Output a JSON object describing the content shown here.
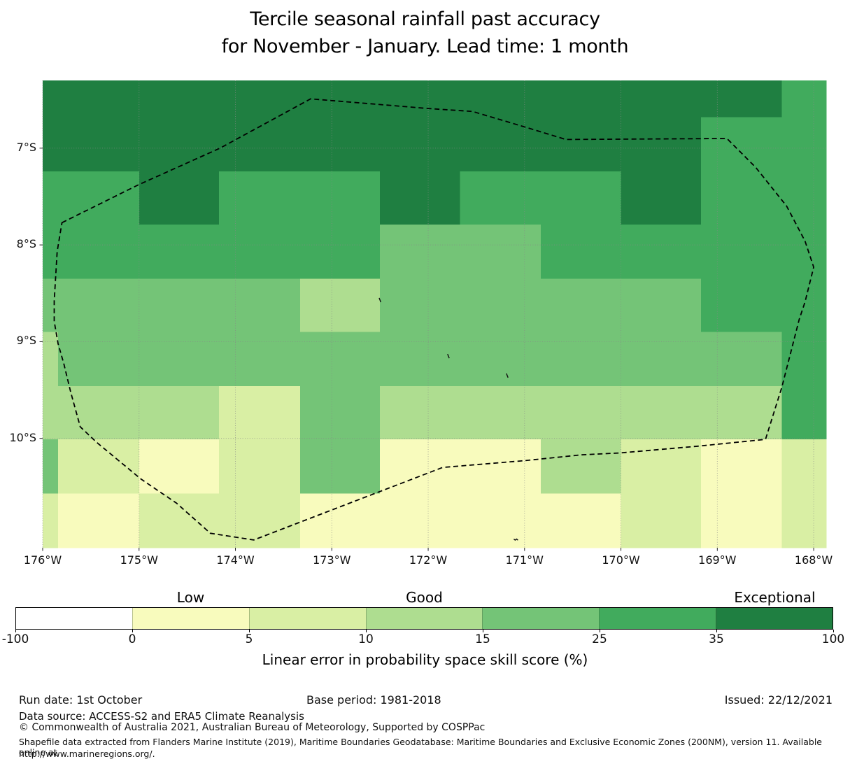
{
  "title": {
    "line1": "Tercile seasonal rainfall past accuracy",
    "line2": "for November - January. Lead time: 1 month"
  },
  "chart_data": {
    "type": "heatmap",
    "title": "Tercile seasonal rainfall past accuracy for November - January. Lead time: 1 month",
    "x_axis": {
      "ticks": [
        "176°W",
        "175°W",
        "174°W",
        "173°W",
        "172°W",
        "171°W",
        "170°W",
        "169°W",
        "168°W"
      ],
      "tick_lons_w": [
        176,
        175,
        174,
        173,
        172,
        171,
        170,
        169,
        168
      ]
    },
    "y_axis": {
      "ticks": [
        "7°S",
        "8°S",
        "9°S",
        "10°S"
      ],
      "tick_lats_s": [
        7,
        8,
        9,
        10
      ]
    },
    "extent": {
      "lon_left_w": 176.0,
      "lon_right_w": 167.87,
      "lat_top_s": 6.3,
      "lat_bottom_s": 11.13
    },
    "grid": {
      "col_bounds_lon_w": [
        176.0,
        175.84,
        175.0,
        174.17,
        173.33,
        172.5,
        171.67,
        170.83,
        170.0,
        169.17,
        168.33,
        167.87
      ],
      "row_bounds_lat_s": [
        6.3,
        6.68,
        7.24,
        7.79,
        8.35,
        8.9,
        9.46,
        10.01,
        10.57,
        11.13
      ],
      "bin_index": [
        [
          6,
          6,
          6,
          6,
          6,
          6,
          6,
          6,
          6,
          6,
          5
        ],
        [
          6,
          6,
          6,
          6,
          6,
          6,
          6,
          6,
          6,
          5,
          5
        ],
        [
          5,
          5,
          6,
          5,
          5,
          6,
          5,
          5,
          6,
          5,
          5
        ],
        [
          5,
          5,
          5,
          5,
          5,
          4,
          4,
          5,
          5,
          5,
          5
        ],
        [
          4,
          4,
          4,
          4,
          3,
          4,
          4,
          4,
          4,
          5,
          5
        ],
        [
          3,
          4,
          4,
          4,
          4,
          4,
          4,
          4,
          4,
          4,
          5
        ],
        [
          3,
          3,
          3,
          2,
          4,
          3,
          3,
          3,
          3,
          3,
          5
        ],
        [
          4,
          2,
          1,
          2,
          4,
          1,
          1,
          3,
          2,
          1,
          2
        ],
        [
          2,
          1,
          2,
          2,
          1,
          1,
          1,
          1,
          2,
          1,
          2
        ]
      ]
    },
    "legend": {
      "bin_edges": [
        -100,
        0,
        5,
        10,
        15,
        25,
        35,
        100
      ],
      "tick_labels": [
        "-100",
        "0",
        "5",
        "10",
        "15",
        "25",
        "35",
        "100"
      ],
      "bin_colors": [
        "#ffffff",
        "#f8fbbd",
        "#d9efa4",
        "#aedd90",
        "#74c477",
        "#41ab5d",
        "#1f7f41"
      ],
      "category_labels": [
        {
          "label": "Low",
          "segment": 1
        },
        {
          "label": "Good",
          "segment": 3
        },
        {
          "label": "Exceptional",
          "segment": 6
        }
      ],
      "caption": "Linear error in probability space skill score (%)"
    },
    "eez_boundary_lon_lat_w_s": [
      [
        175.8,
        7.77
      ],
      [
        175.01,
        7.38
      ],
      [
        174.16,
        7.0
      ],
      [
        173.22,
        6.49
      ],
      [
        172.0,
        6.59
      ],
      [
        171.54,
        6.62
      ],
      [
        171.0,
        6.78
      ],
      [
        170.57,
        6.91
      ],
      [
        168.9,
        6.9
      ],
      [
        168.6,
        7.2
      ],
      [
        168.28,
        7.6
      ],
      [
        168.09,
        7.96
      ],
      [
        168.0,
        8.23
      ],
      [
        168.09,
        8.59
      ],
      [
        168.15,
        8.77
      ],
      [
        168.33,
        9.47
      ],
      [
        168.5,
        10.01
      ],
      [
        169.2,
        10.08
      ],
      [
        170.01,
        10.15
      ],
      [
        170.41,
        10.17
      ],
      [
        171.0,
        10.23
      ],
      [
        171.85,
        10.3
      ],
      [
        173.21,
        10.82
      ],
      [
        173.81,
        11.05
      ],
      [
        174.26,
        10.98
      ],
      [
        174.61,
        10.67
      ],
      [
        174.98,
        10.42
      ],
      [
        175.44,
        10.04
      ],
      [
        175.61,
        9.88
      ],
      [
        175.71,
        9.52
      ],
      [
        175.78,
        9.23
      ],
      [
        175.84,
        9.02
      ],
      [
        175.88,
        8.79
      ],
      [
        175.88,
        8.58
      ],
      [
        175.85,
        8.07
      ],
      [
        175.82,
        7.89
      ]
    ],
    "islands_lon_lat_w_s": [
      [
        172.5,
        8.57
      ],
      [
        171.79,
        9.15
      ],
      [
        171.18,
        9.35
      ],
      [
        171.09,
        11.04
      ]
    ],
    "gridlines": {
      "style": "dotted",
      "color": "#888888"
    }
  },
  "footer": {
    "run_date": "Run date: 1st October",
    "base_period": "Base period: 1981-2018",
    "issued": "Issued: 22/12/2021",
    "data_source": "Data source: ACCESS-S2 and ERA5 Climate Reanalysis",
    "copyright": "© Commonwealth of Australia 2021, Australian Bureau of Meteorology, Supported by COSPPac",
    "shapefile_note_line1": "Shapefile data extracted from Flanders Marine Institute (2019), Maritime Boundaries Geodatabase: Maritime Boundaries and Exclusive Economic Zones (200NM), version 11. Available online at",
    "shapefile_note_line2": "http://www.marineregions.org/."
  }
}
